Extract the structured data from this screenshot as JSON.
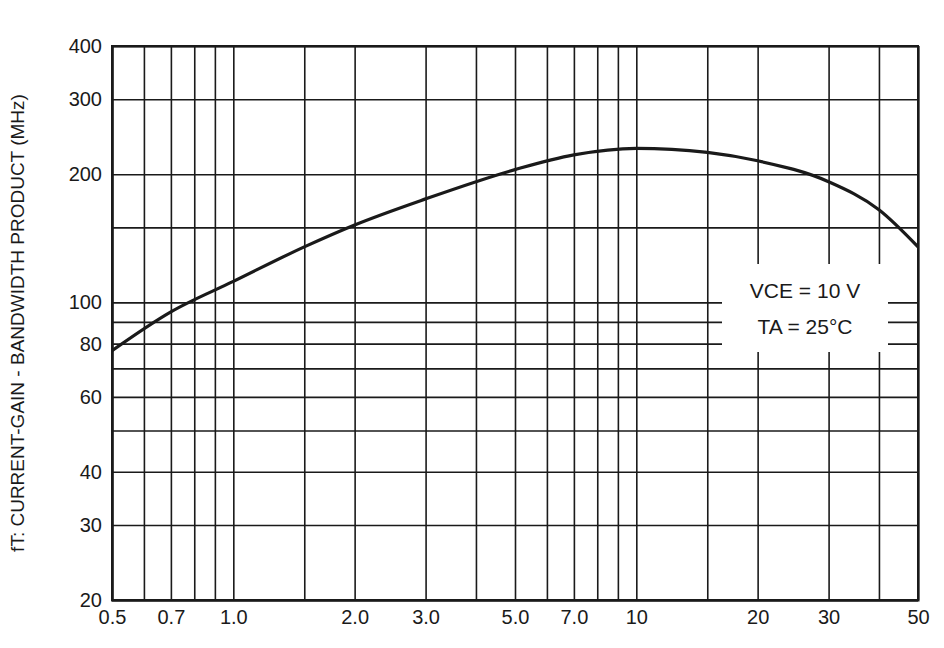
{
  "chart_data": {
    "type": "line",
    "y_label": "fT: CURRENT-GAIN - BANDWIDTH PRODUCT (MHz)",
    "annotations": [
      "VCE = 10 V",
      "TA = 25°C"
    ],
    "log": true,
    "grid": true,
    "x": [
      0.5,
      0.7,
      1.0,
      1.5,
      2.0,
      3.0,
      5.0,
      7.0,
      10,
      15,
      20,
      30,
      40,
      50
    ],
    "series": [
      {
        "color": "#1a1a1a",
        "line_style": "solid",
        "values": [
          77,
          95,
          112,
          135,
          152,
          175,
          205,
          222,
          230,
          225,
          215,
          192,
          165,
          135
        ]
      }
    ],
    "xlim": [
      0.5,
      50
    ],
    "ylim": [
      20,
      400
    ],
    "xticks": [
      0.5,
      {
        "value": 0.6,
        "label": null
      },
      0.7,
      {
        "value": 0.8,
        "label": null
      },
      {
        "value": 0.9,
        "label": null
      },
      {
        "value": 1,
        "label": "1.0"
      },
      {
        "value": 1.5,
        "label": null
      },
      {
        "value": 2,
        "label": "2.0"
      },
      {
        "value": 3,
        "label": "3.0"
      },
      {
        "value": 4,
        "label": null
      },
      {
        "value": 5,
        "label": "5.0"
      },
      {
        "value": 6,
        "label": null
      },
      {
        "value": 7,
        "label": "7.0"
      },
      {
        "value": 8,
        "label": null
      },
      {
        "value": 9,
        "label": null
      },
      10,
      {
        "value": 15,
        "label": null
      },
      20,
      30,
      {
        "value": 40,
        "label": null
      },
      50
    ],
    "yticks": [
      20,
      30,
      40,
      {
        "value": 50,
        "label": null
      },
      60,
      {
        "value": 70,
        "label": null
      },
      80,
      {
        "value": 90,
        "label": null
      },
      100,
      {
        "value": 150,
        "label": null
      },
      200,
      300,
      400
    ]
  }
}
